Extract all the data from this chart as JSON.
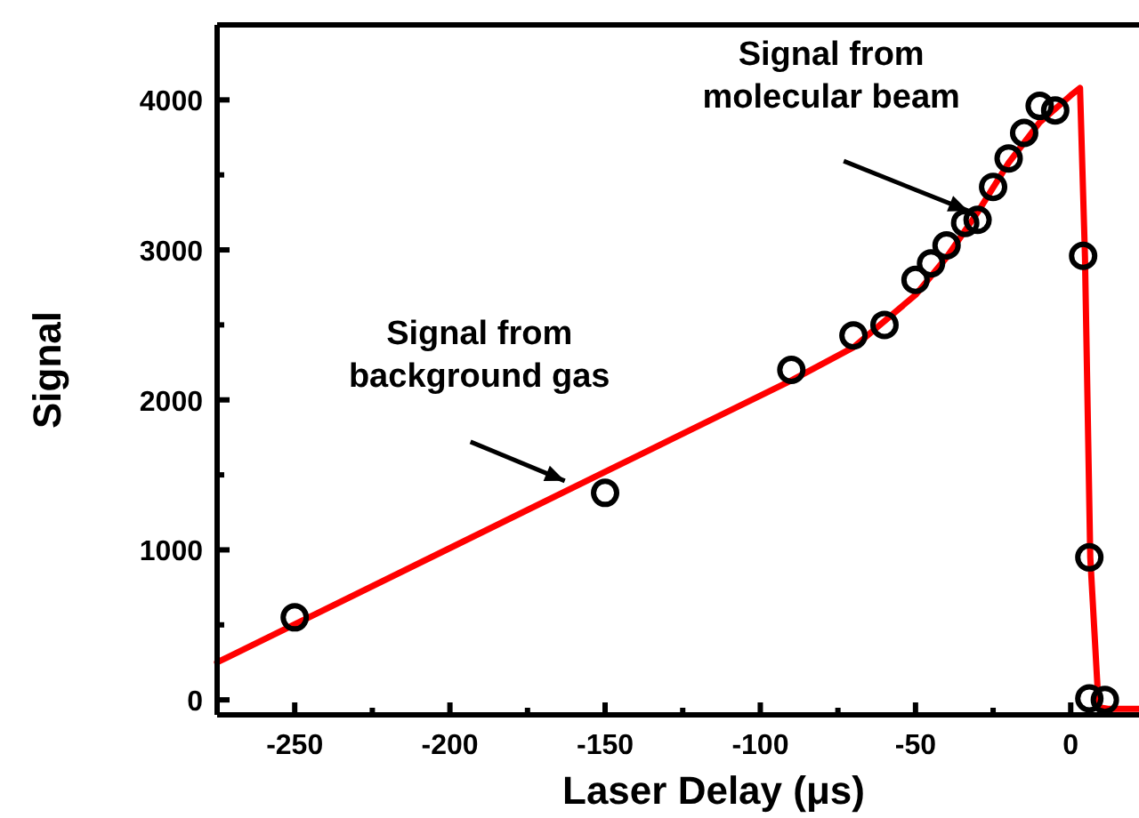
{
  "chart_data": {
    "type": "scatter",
    "xlabel": "Laser Delay (μs)",
    "ylabel": "Signal",
    "xlim": [
      -275,
      22
    ],
    "ylim": [
      -100,
      4500
    ],
    "xticks": [
      -250,
      {
        "value": -225,
        "label": null
      },
      -200,
      {
        "value": -175,
        "label": null
      },
      -150,
      {
        "value": -125,
        "label": null
      },
      -100,
      {
        "value": -75,
        "label": null
      },
      -50,
      {
        "value": -25,
        "label": null
      },
      0
    ],
    "yticks": [
      0,
      {
        "value": 500,
        "label": null
      },
      1000,
      {
        "value": 1500,
        "label": null
      },
      2000,
      {
        "value": 2500,
        "label": null
      },
      3000,
      {
        "value": 3500,
        "label": null
      },
      4000
    ],
    "grid": false,
    "series": [
      {
        "marker": "circle",
        "color": "#000000",
        "x": [
          -250,
          -150,
          -90,
          -70,
          -60,
          -50,
          -45,
          -40,
          -34,
          -30,
          -25,
          -20,
          -15,
          -10,
          -5,
          4,
          6,
          6,
          11
        ],
        "values": [
          550,
          1380,
          2200,
          2430,
          2500,
          2800,
          2910,
          3030,
          3180,
          3200,
          3420,
          3610,
          3780,
          3960,
          3930,
          2960,
          950,
          10,
          0
        ]
      },
      {
        "type": "line",
        "marker": "none",
        "line_style": "solid",
        "color": "#ff0000",
        "x": [
          -275,
          -150,
          -90,
          -70,
          -50,
          -40,
          -30,
          -20,
          -10,
          0,
          3,
          4.6,
          6.3,
          9,
          12,
          22
        ],
        "values": [
          250,
          1520,
          2130,
          2350,
          2700,
          2950,
          3250,
          3580,
          3850,
          4030,
          4080,
          2950,
          950,
          -50,
          -60,
          -60
        ]
      }
    ],
    "annotations": [
      {
        "text": "Signal from\nmolecular beam",
        "x": -33,
        "y": 3260
      },
      {
        "text": "Signal from\nbackground gas",
        "x": -163,
        "y": 1460
      }
    ]
  }
}
